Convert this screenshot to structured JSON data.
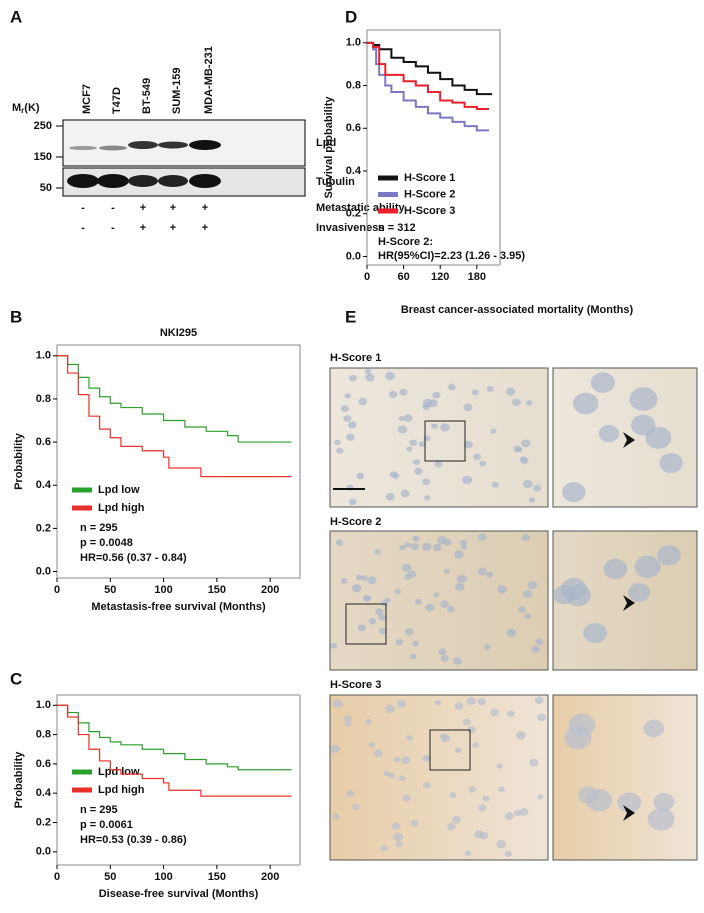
{
  "panel_labels": [
    "A",
    "B",
    "C",
    "D",
    "E"
  ],
  "blot": {
    "lanes": [
      "MCF7",
      "T47D",
      "BT-549",
      "SUM-159",
      "MDA-MB-231"
    ],
    "mw_label": "M",
    "mw_sub": "r",
    "mw_unit": "(K)",
    "markers": [
      250,
      150,
      50
    ],
    "bands": [
      "Lpd",
      "Tubulin"
    ],
    "features": [
      {
        "name": "Metastatic ability",
        "signs": [
          "-",
          "-",
          "+",
          "+",
          "+"
        ]
      },
      {
        "name": "Invasiveness",
        "signs": [
          "-",
          "-",
          "+",
          "+",
          "+"
        ]
      }
    ]
  },
  "chart_data": [
    {
      "type": "step",
      "title": "NKI295",
      "xlabel": "Metastasis-free survival (Months)",
      "ylabel": "Probability",
      "xlim": [
        0,
        228
      ],
      "xticks": [
        0,
        50,
        100,
        150,
        200
      ],
      "ylim": [
        -0.03,
        1.05
      ],
      "yticks": [
        {
          "value": 0,
          "label": "0.0"
        },
        0.2,
        0.4,
        0.6,
        0.8,
        {
          "value": 1,
          "label": "1.0"
        }
      ],
      "series": [
        {
          "name": "Lpd low",
          "color": "#2ca02c",
          "x": [
            0,
            10,
            20,
            30,
            40,
            50,
            60,
            80,
            100,
            120,
            140,
            160,
            170,
            220
          ],
          "values": [
            1.0,
            0.96,
            0.9,
            0.85,
            0.81,
            0.78,
            0.76,
            0.73,
            0.7,
            0.67,
            0.65,
            0.63,
            0.6,
            0.6
          ]
        },
        {
          "name": "Lpd high",
          "color": "#e8302a",
          "x": [
            0,
            10,
            20,
            30,
            40,
            50,
            60,
            80,
            100,
            105,
            135,
            220
          ],
          "values": [
            1.0,
            0.92,
            0.82,
            0.72,
            0.66,
            0.62,
            0.58,
            0.56,
            0.53,
            0.48,
            0.44,
            0.44
          ]
        }
      ],
      "annotations": [
        "n = 295",
        "p = 0.0048",
        "HR=0.56 (0.37 - 0.84)"
      ]
    },
    {
      "type": "step",
      "xlabel": "Disease-free survival (Months)",
      "ylabel": "Probability",
      "xlim": [
        0,
        228
      ],
      "xticks": [
        0,
        50,
        100,
        150,
        200
      ],
      "ylim": [
        -0.09,
        1.07
      ],
      "yticks": [
        {
          "value": 0,
          "label": "0.0"
        },
        0.2,
        0.4,
        0.6,
        0.8,
        {
          "value": 1,
          "label": "1.0"
        }
      ],
      "series": [
        {
          "name": "Lpd low",
          "color": "#2ca02c",
          "x": [
            0,
            10,
            20,
            30,
            40,
            50,
            60,
            80,
            100,
            120,
            140,
            160,
            170,
            220
          ],
          "values": [
            1.0,
            0.95,
            0.88,
            0.82,
            0.78,
            0.75,
            0.73,
            0.7,
            0.67,
            0.63,
            0.6,
            0.58,
            0.56,
            0.56
          ]
        },
        {
          "name": "Lpd high",
          "color": "#e8302a",
          "x": [
            0,
            10,
            20,
            30,
            40,
            50,
            60,
            80,
            100,
            105,
            135,
            220
          ],
          "values": [
            1.0,
            0.92,
            0.8,
            0.7,
            0.62,
            0.56,
            0.53,
            0.5,
            0.47,
            0.42,
            0.38,
            0.38
          ]
        }
      ],
      "annotations": [
        "n = 295",
        "p = 0.0061",
        "HR=0.53 (0.39 - 0.86)"
      ]
    },
    {
      "type": "step",
      "xlabel": "Breast cancer-associated mortality (Months)",
      "ylabel": "Survival probability",
      "xlim": [
        0,
        218
      ],
      "xticks": [
        0,
        60,
        120,
        180
      ],
      "ylim": [
        -0.04,
        1.06
      ],
      "yticks": [
        {
          "value": 0,
          "label": "0.0"
        },
        0.2,
        0.4,
        0.6,
        0.8,
        {
          "value": 1,
          "label": "1.0"
        }
      ],
      "series": [
        {
          "name": "H-Score 1",
          "color": "#111111",
          "x": [
            0,
            10,
            20,
            40,
            60,
            80,
            100,
            120,
            140,
            160,
            180,
            205
          ],
          "values": [
            1.0,
            0.99,
            0.97,
            0.93,
            0.91,
            0.89,
            0.86,
            0.83,
            0.8,
            0.78,
            0.76,
            0.76
          ]
        },
        {
          "name": "H-Score 2",
          "color": "#7b77c0",
          "x": [
            0,
            10,
            15,
            20,
            30,
            40,
            60,
            80,
            100,
            120,
            140,
            160,
            180,
            200
          ],
          "values": [
            1.0,
            0.97,
            0.9,
            0.85,
            0.8,
            0.77,
            0.73,
            0.7,
            0.67,
            0.65,
            0.63,
            0.61,
            0.59,
            0.59
          ]
        },
        {
          "name": "H-Score 3",
          "color": "#e8202a",
          "x": [
            0,
            10,
            20,
            30,
            60,
            80,
            100,
            120,
            140,
            160,
            180,
            200
          ],
          "values": [
            1.0,
            0.98,
            0.9,
            0.85,
            0.82,
            0.8,
            0.77,
            0.73,
            0.72,
            0.7,
            0.69,
            0.69
          ]
        }
      ],
      "annotations": [
        "n = 312",
        "H-Score 2:",
        "HR(95%CI)=2.23 (1.26 - 3.95)"
      ]
    }
  ],
  "micrographs": {
    "rows": [
      {
        "title": "H-Score 1"
      },
      {
        "title": "H-Score 2"
      },
      {
        "title": "H-Score 3"
      }
    ]
  }
}
